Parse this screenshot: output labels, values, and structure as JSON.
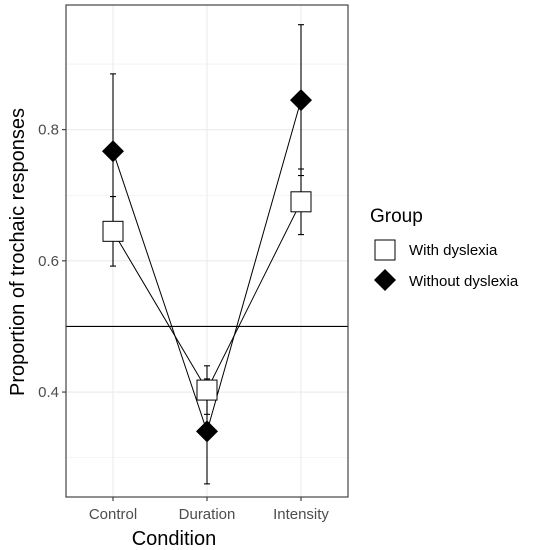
{
  "chart_data": {
    "type": "scatter",
    "title": "",
    "xlabel": "Condition",
    "ylabel": "Proportion of trochaic responses",
    "categories": [
      "Control",
      "Duration",
      "Intensity"
    ],
    "ylim": [
      0.24,
      0.99
    ],
    "yticks": [
      0.4,
      0.6,
      0.8
    ],
    "ytick_labels": [
      "0.4",
      "0.6",
      "0.8"
    ],
    "reference_line": 0.5,
    "grid": true,
    "legend": {
      "title": "Group",
      "position": "right"
    },
    "series": [
      {
        "name": "With dyslexia",
        "marker": "square",
        "fill": "#ffffff",
        "values": [
          0.645,
          0.403,
          0.69
        ],
        "lower": [
          0.592,
          0.366,
          0.64
        ],
        "upper": [
          0.698,
          0.44,
          0.74
        ]
      },
      {
        "name": "Without dyslexia",
        "marker": "diamond",
        "fill": "#000000",
        "values": [
          0.767,
          0.34,
          0.845
        ],
        "lower": [
          0.65,
          0.26,
          0.73
        ],
        "upper": [
          0.885,
          0.42,
          0.96
        ]
      }
    ],
    "colors": {
      "grid": "#ebebeb",
      "axis_text": "#4d4d4d",
      "lines": "#000000"
    }
  }
}
